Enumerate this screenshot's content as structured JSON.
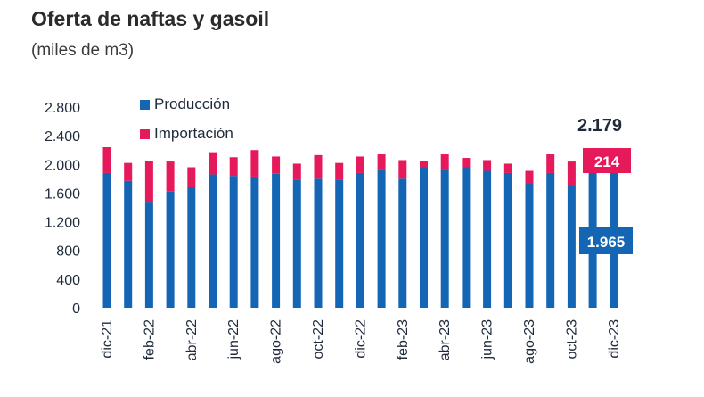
{
  "header": {
    "title": "Oferta de naftas y gasoil",
    "subtitle": "(miles de m3)"
  },
  "colors": {
    "produccion": "#1565b5",
    "importacion": "#e6195a",
    "text": "#1f2a3a"
  },
  "chart_data": {
    "type": "bar",
    "stacked": true,
    "title": "Oferta de naftas y gasoil",
    "subtitle": "(miles de m3)",
    "xlabel": "",
    "ylabel": "",
    "ylim": [
      0,
      2800
    ],
    "yticks": [
      0,
      400,
      800,
      1200,
      1600,
      2000,
      2400,
      2800
    ],
    "ytick_labels": [
      "0",
      "400",
      "800",
      "1.200",
      "1.600",
      "2.000",
      "2.400",
      "2.800"
    ],
    "categories": [
      "dic-21",
      "ene-22",
      "feb-22",
      "mar-22",
      "abr-22",
      "may-22",
      "jun-22",
      "jul-22",
      "ago-22",
      "sep-22",
      "oct-22",
      "nov-22",
      "dic-22",
      "ene-23",
      "feb-23",
      "mar-23",
      "abr-23",
      "may-23",
      "jun-23",
      "jul-23",
      "ago-23",
      "sep-23",
      "oct-23",
      "nov-23",
      "dic-23"
    ],
    "xtick_labels": [
      "dic-21",
      "",
      "feb-22",
      "",
      "abr-22",
      "",
      "jun-22",
      "",
      "ago-22",
      "",
      "oct-22",
      "",
      "dic-22",
      "",
      "feb-23",
      "",
      "abr-23",
      "",
      "jun-23",
      "",
      "ago-23",
      "",
      "oct-23",
      "",
      "dic-23"
    ],
    "series": [
      {
        "name": "Producción",
        "values": [
          1880,
          1770,
          1480,
          1620,
          1680,
          1860,
          1840,
          1830,
          1870,
          1790,
          1800,
          1790,
          1880,
          1930,
          1800,
          1960,
          1940,
          1960,
          1910,
          1880,
          1730,
          1880,
          1700,
          1965,
          1965
        ]
      },
      {
        "name": "Importación",
        "values": [
          360,
          250,
          570,
          420,
          280,
          310,
          260,
          370,
          240,
          220,
          330,
          230,
          230,
          210,
          260,
          90,
          200,
          130,
          150,
          130,
          180,
          260,
          340,
          200,
          214
        ]
      }
    ],
    "legend": {
      "position": "top-left",
      "entries": [
        "Producción",
        "Importación"
      ]
    },
    "annotations": {
      "total": "2.179",
      "importacion": "214",
      "produccion": "1.965"
    },
    "grid": false
  }
}
